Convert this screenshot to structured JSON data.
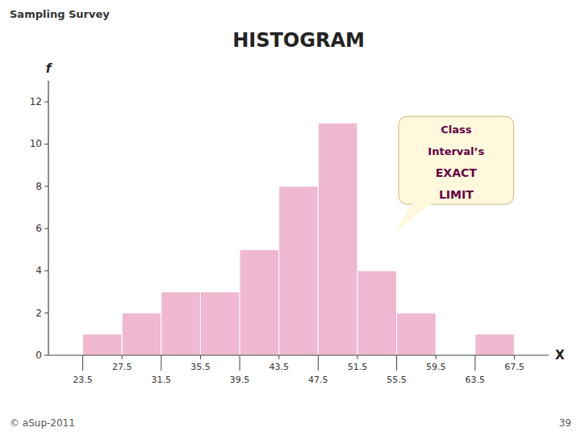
{
  "chart_data": {
    "type": "histogram",
    "title": "HISTOGRAM",
    "xlabel": "X",
    "ylabel": "f",
    "header": "Sampling Survey",
    "footer": "© aSup-2011",
    "footer_right": "39",
    "annotations": [
      "Class",
      "Interval’s",
      "EXACT",
      "LIMIT"
    ],
    "bins": [
      23.5,
      27.5,
      31.5,
      35.5,
      39.5,
      43.5,
      47.5,
      51.5,
      55.5,
      59.5,
      63.5,
      67.5
    ],
    "values": [
      1,
      2,
      3,
      3,
      5,
      8,
      11,
      4,
      2,
      0,
      1
    ],
    "color": "#f0b8d0",
    "xlim": [
      20.0,
      71.0
    ],
    "xticks": [
      23.5,
      27.5,
      31.5,
      35.5,
      39.5,
      43.5,
      47.5,
      51.5,
      55.5,
      59.5,
      63.5,
      67.5
    ],
    "ylim": [
      0,
      13
    ],
    "yticks": [
      0,
      2,
      4,
      6,
      8,
      10,
      12
    ],
    "grid": false
  }
}
